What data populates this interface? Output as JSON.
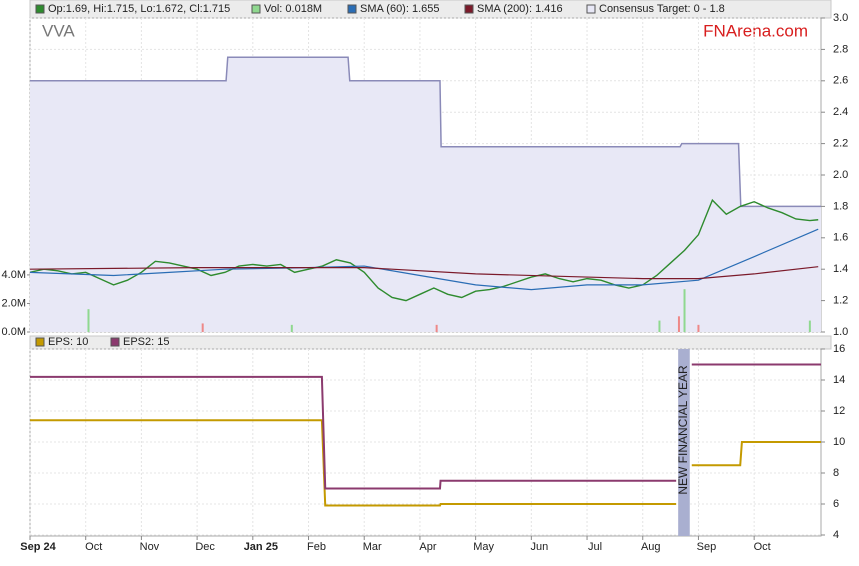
{
  "chart_data": [
    {
      "type": "stock",
      "title": "VVA",
      "source": "FNArena.com",
      "xlim": [
        0,
        14.2
      ],
      "ylim": [
        1,
        3
      ],
      "yticks": [
        {
          "value": 1,
          "label": "1.0"
        },
        1.2,
        1.4,
        1.6,
        1.8,
        {
          "value": 2,
          "label": "2.0"
        },
        2.2,
        2.4,
        2.6,
        2.8,
        {
          "value": 3,
          "label": "3.0"
        }
      ],
      "y2lim": [
        0,
        22
      ],
      "y2ticks": [
        {
          "value": 0,
          "label": "0.0M"
        },
        {
          "value": 2,
          "label": "2.0M"
        },
        {
          "value": 4,
          "label": "4.0M"
        }
      ],
      "grid": true,
      "series": [
        {
          "name": "Op:1.69, Hi:1.715, Lo:1.672, Cl:1.715",
          "color": "#2e8b2e",
          "style": "line",
          "x": [
            0,
            0.25,
            0.5,
            0.75,
            1,
            1.25,
            1.5,
            1.75,
            2,
            2.25,
            2.5,
            2.75,
            3,
            3.25,
            3.5,
            3.75,
            4,
            4.25,
            4.5,
            4.75,
            5,
            5.25,
            5.5,
            5.75,
            6,
            6.25,
            6.5,
            6.75,
            7,
            7.25,
            7.5,
            7.75,
            8,
            8.25,
            8.5,
            8.75,
            9,
            9.25,
            9.5,
            9.75,
            10,
            10.25,
            10.5,
            10.75,
            11,
            11.25,
            11.5,
            11.75,
            12,
            12.25,
            12.5,
            12.75,
            13,
            13.25,
            13.5,
            13.75,
            14,
            14.15
          ],
          "values": [
            1.38,
            1.4,
            1.39,
            1.37,
            1.38,
            1.34,
            1.3,
            1.33,
            1.38,
            1.45,
            1.44,
            1.42,
            1.4,
            1.36,
            1.38,
            1.42,
            1.43,
            1.42,
            1.43,
            1.38,
            1.4,
            1.42,
            1.46,
            1.44,
            1.38,
            1.28,
            1.22,
            1.2,
            1.24,
            1.28,
            1.24,
            1.22,
            1.26,
            1.27,
            1.29,
            1.32,
            1.35,
            1.37,
            1.34,
            1.32,
            1.34,
            1.33,
            1.3,
            1.28,
            1.3,
            1.36,
            1.44,
            1.52,
            1.62,
            1.84,
            1.75,
            1.8,
            1.83,
            1.79,
            1.76,
            1.72,
            1.71,
            1.715
          ]
        },
        {
          "name": "Vol: 0.018M",
          "color": "#8fd88f",
          "style": "bar",
          "axis": "y2",
          "x": [
            1.05,
            3.1,
            4.7,
            7.3,
            11.3,
            11.65,
            11.75,
            12.0,
            14.0
          ],
          "values": [
            1.6,
            0.6,
            0.5,
            0.5,
            0.8,
            1.1,
            3.0,
            0.5,
            0.8
          ]
        },
        {
          "name": "SMA (60): 1.655",
          "color": "#2a6db5",
          "style": "line",
          "x": [
            0,
            1.5,
            2.5,
            3.5,
            5,
            6,
            7,
            8,
            9,
            10,
            11,
            12,
            13,
            14.15
          ],
          "values": [
            1.38,
            1.36,
            1.38,
            1.4,
            1.41,
            1.42,
            1.36,
            1.3,
            1.27,
            1.3,
            1.3,
            1.33,
            1.48,
            1.655
          ]
        },
        {
          "name": "SMA (200): 1.416",
          "color": "#7b1a2a",
          "style": "line",
          "x": [
            0,
            3,
            6,
            8,
            10,
            11,
            12,
            13,
            14.15
          ],
          "values": [
            1.4,
            1.41,
            1.41,
            1.37,
            1.35,
            1.34,
            1.34,
            1.37,
            1.416
          ]
        },
        {
          "name": "Consensus Target: 0 - 1.8",
          "color": "#8a8ab8",
          "fill": "#e8e8f6",
          "style": "area",
          "x": [
            0,
            3.52,
            3.55,
            5.71,
            5.74,
            7.36,
            7.38,
            11.67,
            11.7,
            12.72,
            12.76,
            14.2
          ],
          "values": [
            2.6,
            2.6,
            2.75,
            2.75,
            2.6,
            2.6,
            2.18,
            2.18,
            2.2,
            2.2,
            1.8,
            1.8
          ]
        }
      ]
    },
    {
      "type": "line",
      "xlim": [
        0,
        14.2
      ],
      "xticks": [
        {
          "value": 0,
          "label": "Sep 24"
        },
        {
          "value": 1,
          "label": "Oct"
        },
        {
          "value": 2,
          "label": "Nov"
        },
        {
          "value": 3,
          "label": "Dec"
        },
        {
          "value": 4,
          "label": "Jan 25"
        },
        {
          "value": 5,
          "label": "Feb"
        },
        {
          "value": 6,
          "label": "Mar"
        },
        {
          "value": 7,
          "label": "Apr"
        },
        {
          "value": 8,
          "label": "May"
        },
        {
          "value": 9,
          "label": "Jun"
        },
        {
          "value": 10,
          "label": "Jul"
        },
        {
          "value": 11,
          "label": "Aug"
        },
        {
          "value": 12,
          "label": "Sep"
        },
        {
          "value": 13,
          "label": "Oct"
        }
      ],
      "ylim": [
        4,
        16
      ],
      "yticks": [
        4,
        6,
        8,
        10,
        12,
        14,
        16
      ],
      "grid": true,
      "annotation": "NEW FINANCIAL YEAR",
      "x": [
        0,
        5.24,
        5.3,
        7.36,
        7.37,
        11.6,
        11.74,
        11.88,
        12.75,
        12.78,
        14.2
      ],
      "series": [
        {
          "name": "EPS: 10",
          "color": "#c49a00",
          "values": [
            11.4,
            11.4,
            5.9,
            5.9,
            6.0,
            6.0,
            null,
            8.5,
            8.5,
            10,
            10
          ]
        },
        {
          "name": "EPS2: 15",
          "color": "#8b3a6e",
          "values": [
            14.2,
            14.2,
            7.0,
            7.0,
            7.5,
            7.5,
            null,
            15,
            15,
            15,
            15
          ]
        }
      ]
    }
  ]
}
